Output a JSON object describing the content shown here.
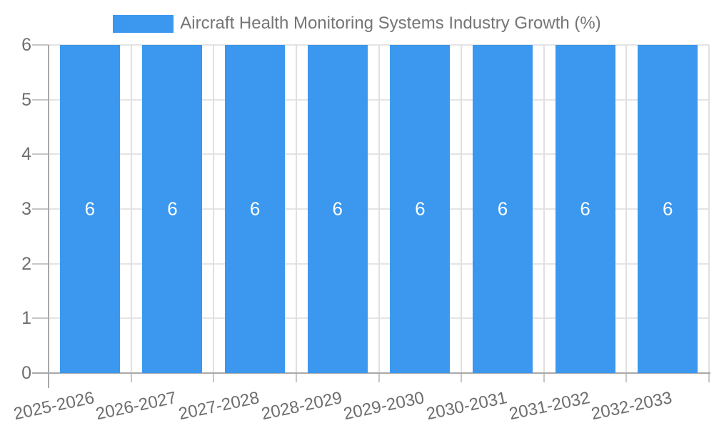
{
  "chart_data": {
    "type": "bar",
    "title": "Aircraft Health Monitoring Systems Industry Growth (%)",
    "categories": [
      "2025-2026",
      "2026-2027",
      "2027-2028",
      "2028-2029",
      "2029-2030",
      "2030-2031",
      "2031-2032",
      "2032-2033"
    ],
    "values": [
      6,
      6,
      6,
      6,
      6,
      6,
      6,
      6
    ],
    "xlabel": "",
    "ylabel": "",
    "ylim": [
      0,
      6
    ],
    "yticks": [
      0,
      1,
      2,
      3,
      4,
      5,
      6
    ],
    "grid": true,
    "legend_position": "top",
    "bar_color": "#3b98ee",
    "value_label_color": "#ffffff",
    "axis_color": "#a9a9a9",
    "gridline_color": "#e4e4e4",
    "tick_label_color": "#6e6e6e",
    "legend_text_color": "#757575"
  }
}
